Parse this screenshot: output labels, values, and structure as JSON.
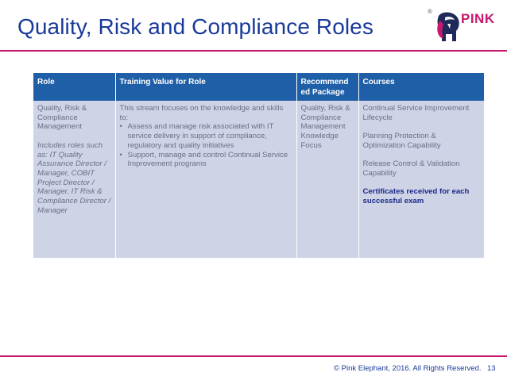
{
  "slide": {
    "title": "Quality, Risk and Compliance Roles",
    "footer": "© Pink Elephant, 2016. All Rights Reserved.",
    "page_number": "13"
  },
  "logo": {
    "registered": "®",
    "brand": "PINK"
  },
  "colors": {
    "accent": "#c8186e",
    "title": "#1a3a9a",
    "header_fill": "#1f5fa8",
    "cell_fill": "#cfd3e6"
  },
  "table": {
    "headers": [
      "Role",
      "Training Value for Role",
      "Recommend ed Package",
      "Courses"
    ],
    "row": {
      "role": {
        "name": "Quality, Risk & Compliance Management",
        "includes": "Includes roles such as: IT Quality Assurance Director / Manager, COBIT Project Director / Manager, IT Risk & Compliance Director / Manager"
      },
      "training_value": {
        "intro": "This stream focuses on the knowledge and skills to:",
        "bullets": [
          "Assess and manage risk associated with IT service delivery in support of compliance, regulatory and quality initiatives",
          "Support, manage and control Continual Service Improvement programs"
        ]
      },
      "package": "Quality, Risk & Compliance Management Knowledge Focus",
      "courses": {
        "items": [
          "Continual Service Improvement Lifecycle",
          "Planning Protection & Optimization Capability",
          "Release Control & Validation Capability"
        ],
        "note": "Certificates received for each successful exam"
      }
    }
  }
}
